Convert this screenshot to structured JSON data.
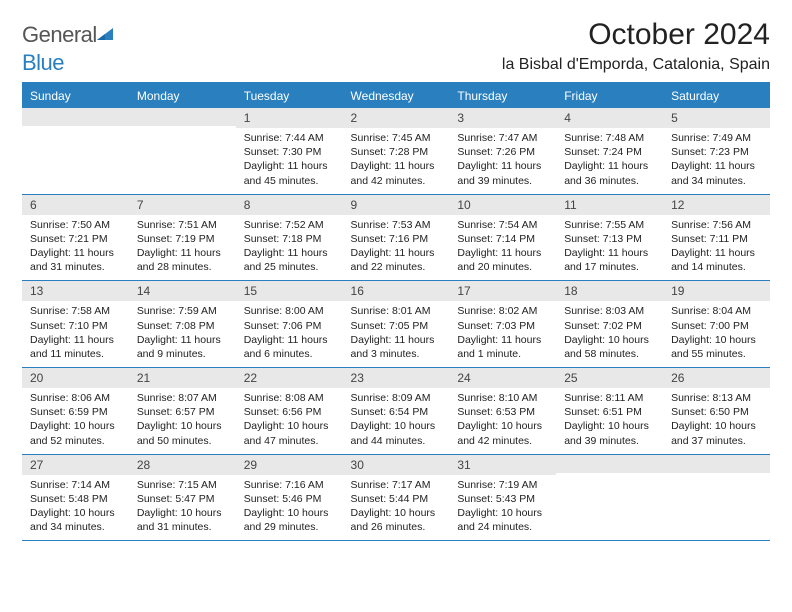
{
  "brand": {
    "general": "General",
    "blue": "Blue"
  },
  "title": "October 2024",
  "location": "la Bisbal d'Emporda, Catalonia, Spain",
  "colors": {
    "header_bg": "#2a7fbf",
    "header_text": "#ffffff",
    "daynum_bg": "#e8e8e8",
    "rule": "#2a7fbf",
    "page_bg": "#ffffff",
    "text": "#222222"
  },
  "weekdays": [
    "Sunday",
    "Monday",
    "Tuesday",
    "Wednesday",
    "Thursday",
    "Friday",
    "Saturday"
  ],
  "weeks": [
    [
      {
        "n": "",
        "sr": "",
        "ss": "",
        "dl": ""
      },
      {
        "n": "",
        "sr": "",
        "ss": "",
        "dl": ""
      },
      {
        "n": "1",
        "sr": "Sunrise: 7:44 AM",
        "ss": "Sunset: 7:30 PM",
        "dl": "Daylight: 11 hours and 45 minutes."
      },
      {
        "n": "2",
        "sr": "Sunrise: 7:45 AM",
        "ss": "Sunset: 7:28 PM",
        "dl": "Daylight: 11 hours and 42 minutes."
      },
      {
        "n": "3",
        "sr": "Sunrise: 7:47 AM",
        "ss": "Sunset: 7:26 PM",
        "dl": "Daylight: 11 hours and 39 minutes."
      },
      {
        "n": "4",
        "sr": "Sunrise: 7:48 AM",
        "ss": "Sunset: 7:24 PM",
        "dl": "Daylight: 11 hours and 36 minutes."
      },
      {
        "n": "5",
        "sr": "Sunrise: 7:49 AM",
        "ss": "Sunset: 7:23 PM",
        "dl": "Daylight: 11 hours and 34 minutes."
      }
    ],
    [
      {
        "n": "6",
        "sr": "Sunrise: 7:50 AM",
        "ss": "Sunset: 7:21 PM",
        "dl": "Daylight: 11 hours and 31 minutes."
      },
      {
        "n": "7",
        "sr": "Sunrise: 7:51 AM",
        "ss": "Sunset: 7:19 PM",
        "dl": "Daylight: 11 hours and 28 minutes."
      },
      {
        "n": "8",
        "sr": "Sunrise: 7:52 AM",
        "ss": "Sunset: 7:18 PM",
        "dl": "Daylight: 11 hours and 25 minutes."
      },
      {
        "n": "9",
        "sr": "Sunrise: 7:53 AM",
        "ss": "Sunset: 7:16 PM",
        "dl": "Daylight: 11 hours and 22 minutes."
      },
      {
        "n": "10",
        "sr": "Sunrise: 7:54 AM",
        "ss": "Sunset: 7:14 PM",
        "dl": "Daylight: 11 hours and 20 minutes."
      },
      {
        "n": "11",
        "sr": "Sunrise: 7:55 AM",
        "ss": "Sunset: 7:13 PM",
        "dl": "Daylight: 11 hours and 17 minutes."
      },
      {
        "n": "12",
        "sr": "Sunrise: 7:56 AM",
        "ss": "Sunset: 7:11 PM",
        "dl": "Daylight: 11 hours and 14 minutes."
      }
    ],
    [
      {
        "n": "13",
        "sr": "Sunrise: 7:58 AM",
        "ss": "Sunset: 7:10 PM",
        "dl": "Daylight: 11 hours and 11 minutes."
      },
      {
        "n": "14",
        "sr": "Sunrise: 7:59 AM",
        "ss": "Sunset: 7:08 PM",
        "dl": "Daylight: 11 hours and 9 minutes."
      },
      {
        "n": "15",
        "sr": "Sunrise: 8:00 AM",
        "ss": "Sunset: 7:06 PM",
        "dl": "Daylight: 11 hours and 6 minutes."
      },
      {
        "n": "16",
        "sr": "Sunrise: 8:01 AM",
        "ss": "Sunset: 7:05 PM",
        "dl": "Daylight: 11 hours and 3 minutes."
      },
      {
        "n": "17",
        "sr": "Sunrise: 8:02 AM",
        "ss": "Sunset: 7:03 PM",
        "dl": "Daylight: 11 hours and 1 minute."
      },
      {
        "n": "18",
        "sr": "Sunrise: 8:03 AM",
        "ss": "Sunset: 7:02 PM",
        "dl": "Daylight: 10 hours and 58 minutes."
      },
      {
        "n": "19",
        "sr": "Sunrise: 8:04 AM",
        "ss": "Sunset: 7:00 PM",
        "dl": "Daylight: 10 hours and 55 minutes."
      }
    ],
    [
      {
        "n": "20",
        "sr": "Sunrise: 8:06 AM",
        "ss": "Sunset: 6:59 PM",
        "dl": "Daylight: 10 hours and 52 minutes."
      },
      {
        "n": "21",
        "sr": "Sunrise: 8:07 AM",
        "ss": "Sunset: 6:57 PM",
        "dl": "Daylight: 10 hours and 50 minutes."
      },
      {
        "n": "22",
        "sr": "Sunrise: 8:08 AM",
        "ss": "Sunset: 6:56 PM",
        "dl": "Daylight: 10 hours and 47 minutes."
      },
      {
        "n": "23",
        "sr": "Sunrise: 8:09 AM",
        "ss": "Sunset: 6:54 PM",
        "dl": "Daylight: 10 hours and 44 minutes."
      },
      {
        "n": "24",
        "sr": "Sunrise: 8:10 AM",
        "ss": "Sunset: 6:53 PM",
        "dl": "Daylight: 10 hours and 42 minutes."
      },
      {
        "n": "25",
        "sr": "Sunrise: 8:11 AM",
        "ss": "Sunset: 6:51 PM",
        "dl": "Daylight: 10 hours and 39 minutes."
      },
      {
        "n": "26",
        "sr": "Sunrise: 8:13 AM",
        "ss": "Sunset: 6:50 PM",
        "dl": "Daylight: 10 hours and 37 minutes."
      }
    ],
    [
      {
        "n": "27",
        "sr": "Sunrise: 7:14 AM",
        "ss": "Sunset: 5:48 PM",
        "dl": "Daylight: 10 hours and 34 minutes."
      },
      {
        "n": "28",
        "sr": "Sunrise: 7:15 AM",
        "ss": "Sunset: 5:47 PM",
        "dl": "Daylight: 10 hours and 31 minutes."
      },
      {
        "n": "29",
        "sr": "Sunrise: 7:16 AM",
        "ss": "Sunset: 5:46 PM",
        "dl": "Daylight: 10 hours and 29 minutes."
      },
      {
        "n": "30",
        "sr": "Sunrise: 7:17 AM",
        "ss": "Sunset: 5:44 PM",
        "dl": "Daylight: 10 hours and 26 minutes."
      },
      {
        "n": "31",
        "sr": "Sunrise: 7:19 AM",
        "ss": "Sunset: 5:43 PM",
        "dl": "Daylight: 10 hours and 24 minutes."
      },
      {
        "n": "",
        "sr": "",
        "ss": "",
        "dl": ""
      },
      {
        "n": "",
        "sr": "",
        "ss": "",
        "dl": ""
      }
    ]
  ]
}
